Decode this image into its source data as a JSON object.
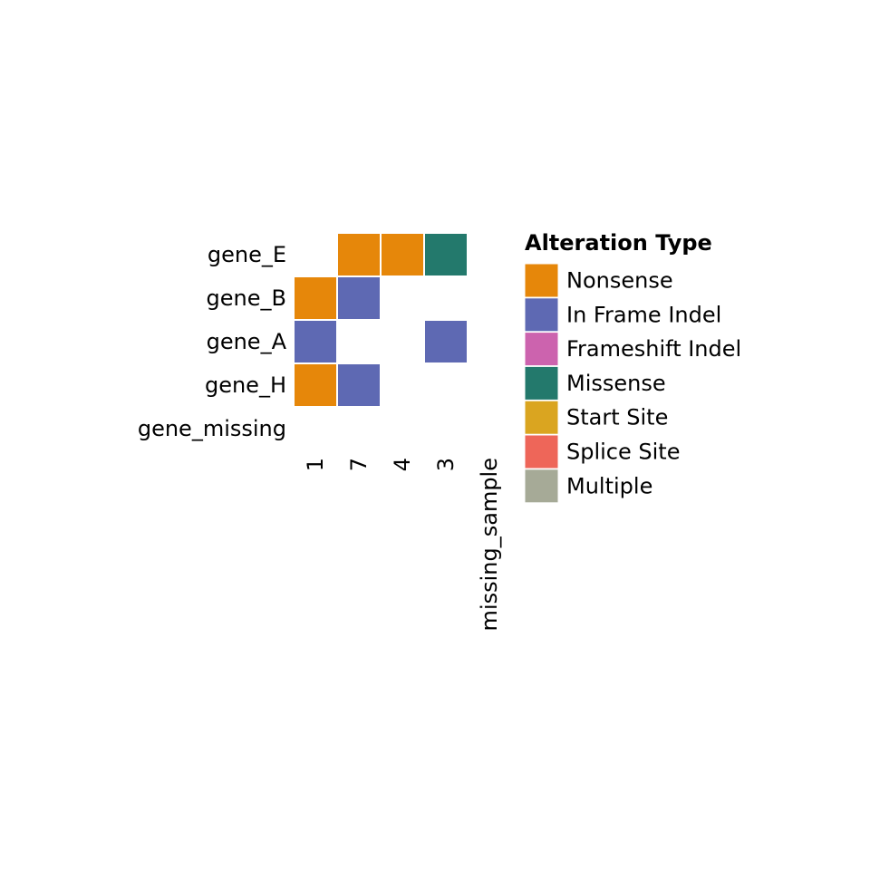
{
  "chart_data": {
    "type": "heatmap",
    "rows": [
      "gene_E",
      "gene_B",
      "gene_A",
      "gene_H",
      "gene_missing"
    ],
    "columns": [
      "1",
      "7",
      "4",
      "3",
      "missing_sample"
    ],
    "cells": [
      {
        "row": "gene_E",
        "column": "7",
        "alteration": "Nonsense"
      },
      {
        "row": "gene_E",
        "column": "4",
        "alteration": "Nonsense"
      },
      {
        "row": "gene_E",
        "column": "3",
        "alteration": "Missense"
      },
      {
        "row": "gene_B",
        "column": "1",
        "alteration": "Nonsense"
      },
      {
        "row": "gene_B",
        "column": "7",
        "alteration": "In Frame Indel"
      },
      {
        "row": "gene_A",
        "column": "1",
        "alteration": "In Frame Indel"
      },
      {
        "row": "gene_A",
        "column": "3",
        "alteration": "In Frame Indel"
      },
      {
        "row": "gene_H",
        "column": "1",
        "alteration": "Nonsense"
      },
      {
        "row": "gene_H",
        "column": "7",
        "alteration": "In Frame Indel"
      }
    ],
    "legend": {
      "title": "Alteration Type",
      "placement": "right",
      "items": [
        {
          "label": "Nonsense",
          "color": "#E6870A"
        },
        {
          "label": "In Frame Indel",
          "color": "#5E69B3"
        },
        {
          "label": "Frameshift Indel",
          "color": "#CC63AE"
        },
        {
          "label": "Missense",
          "color": "#23796C"
        },
        {
          "label": "Start Site",
          "color": "#DAA520"
        },
        {
          "label": "Splice Site",
          "color": "#EE6659"
        },
        {
          "label": "Multiple",
          "color": "#A6AA97"
        }
      ]
    },
    "grid": false,
    "cell_border_color": "#FFFFFF"
  }
}
